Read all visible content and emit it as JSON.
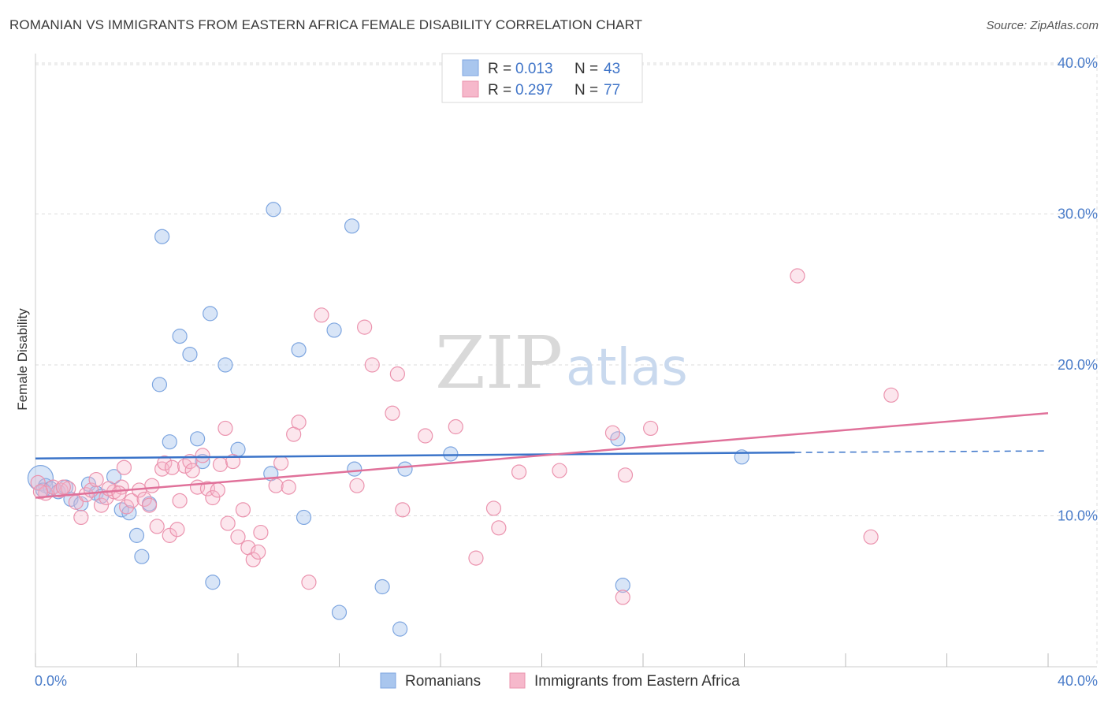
{
  "header": {
    "title": "ROMANIAN VS IMMIGRANTS FROM EASTERN AFRICA FEMALE DISABILITY CORRELATION CHART",
    "source": "Source: ZipAtlas.com"
  },
  "watermark": {
    "zip": "ZIP",
    "atlas": "atlas"
  },
  "legend": {
    "rows": [
      {
        "r_label": "R =",
        "r_value": "0.013",
        "n_label": "N =",
        "n_value": "43",
        "color": "#a9c6ee"
      },
      {
        "r_label": "R =",
        "r_value": "0.297",
        "n_label": "N =",
        "n_value": "77",
        "color": "#f6b8cb"
      }
    ]
  },
  "bottom_legend": {
    "items": [
      {
        "label": "Romanians",
        "color": "#a9c6ee"
      },
      {
        "label": "Immigrants from Eastern Africa",
        "color": "#f6b8cb"
      }
    ]
  },
  "chart_data": {
    "type": "scatter",
    "title": "ROMANIAN VS IMMIGRANTS FROM EASTERN AFRICA FEMALE DISABILITY CORRELATION CHART",
    "xlabel": "",
    "ylabel": "Female Disability",
    "xlim": [
      0,
      40
    ],
    "ylim": [
      0,
      40
    ],
    "x_tick_labels": [
      "0.0%",
      "40.0%"
    ],
    "y_tick_labels": [
      "10.0%",
      "20.0%",
      "30.0%",
      "40.0%"
    ],
    "y_ticks": [
      10,
      20,
      30,
      40
    ],
    "grid": true,
    "legend_position": "top-center",
    "colors": {
      "romanians": "#a9c6ee",
      "romanians_line": "#3b74c9",
      "eastern_africa": "#f6b8cb",
      "eastern_africa_line": "#e0719a"
    },
    "series": [
      {
        "name": "Romanians",
        "r": 0.013,
        "n": 43,
        "trend": {
          "x0": 0,
          "y0": 13.8,
          "x1": 30,
          "y1": 14.2,
          "dashed_to_x": 40,
          "dashed_to_y": 14.3
        },
        "points": [
          [
            0.2,
            12.5
          ],
          [
            0.4,
            12.0
          ],
          [
            0.6,
            11.8
          ],
          [
            0.9,
            11.6
          ],
          [
            1.2,
            11.9
          ],
          [
            1.4,
            11.1
          ],
          [
            1.8,
            10.8
          ],
          [
            2.1,
            12.1
          ],
          [
            2.4,
            11.5
          ],
          [
            2.6,
            11.3
          ],
          [
            3.1,
            12.6
          ],
          [
            3.4,
            10.4
          ],
          [
            3.7,
            10.2
          ],
          [
            4.0,
            8.7
          ],
          [
            4.2,
            7.3
          ],
          [
            4.5,
            10.8
          ],
          [
            4.9,
            18.7
          ],
          [
            5.0,
            28.5
          ],
          [
            5.3,
            14.9
          ],
          [
            5.7,
            21.9
          ],
          [
            6.1,
            20.7
          ],
          [
            6.4,
            15.1
          ],
          [
            6.6,
            13.6
          ],
          [
            6.9,
            23.4
          ],
          [
            7.0,
            5.6
          ],
          [
            7.5,
            20.0
          ],
          [
            8.0,
            14.4
          ],
          [
            9.3,
            12.8
          ],
          [
            9.4,
            30.3
          ],
          [
            10.4,
            21.0
          ],
          [
            10.6,
            9.9
          ],
          [
            11.8,
            22.3
          ],
          [
            12.0,
            3.6
          ],
          [
            12.5,
            29.2
          ],
          [
            12.6,
            13.1
          ],
          [
            13.7,
            5.3
          ],
          [
            14.4,
            2.5
          ],
          [
            14.6,
            13.1
          ],
          [
            16.4,
            14.1
          ],
          [
            23.0,
            15.1
          ],
          [
            23.2,
            5.4
          ],
          [
            27.9,
            13.9
          ],
          [
            0.3,
            11.7
          ]
        ]
      },
      {
        "name": "Immigrants from Eastern Africa",
        "r": 0.297,
        "n": 77,
        "trend": {
          "x0": 0,
          "y0": 11.2,
          "x1": 40,
          "y1": 16.8
        },
        "points": [
          [
            0.1,
            12.2
          ],
          [
            0.4,
            11.5
          ],
          [
            0.7,
            11.9
          ],
          [
            1.0,
            11.7
          ],
          [
            1.3,
            11.8
          ],
          [
            1.6,
            10.9
          ],
          [
            1.8,
            9.9
          ],
          [
            2.0,
            11.4
          ],
          [
            2.2,
            11.7
          ],
          [
            2.4,
            12.4
          ],
          [
            2.6,
            10.7
          ],
          [
            2.8,
            11.2
          ],
          [
            3.1,
            11.6
          ],
          [
            3.4,
            11.9
          ],
          [
            3.5,
            13.2
          ],
          [
            3.6,
            10.6
          ],
          [
            3.8,
            11.0
          ],
          [
            4.1,
            11.7
          ],
          [
            4.3,
            11.1
          ],
          [
            4.5,
            10.7
          ],
          [
            4.6,
            12.0
          ],
          [
            4.8,
            9.3
          ],
          [
            5.0,
            13.1
          ],
          [
            5.1,
            13.5
          ],
          [
            5.3,
            8.7
          ],
          [
            5.4,
            13.2
          ],
          [
            5.6,
            9.1
          ],
          [
            5.7,
            11.0
          ],
          [
            5.9,
            13.3
          ],
          [
            6.1,
            13.6
          ],
          [
            6.4,
            11.9
          ],
          [
            6.6,
            14.0
          ],
          [
            6.8,
            11.8
          ],
          [
            7.0,
            11.2
          ],
          [
            7.2,
            11.7
          ],
          [
            7.3,
            13.4
          ],
          [
            7.5,
            15.8
          ],
          [
            7.6,
            9.5
          ],
          [
            7.8,
            13.6
          ],
          [
            8.0,
            8.6
          ],
          [
            8.2,
            10.4
          ],
          [
            8.4,
            7.9
          ],
          [
            8.6,
            7.1
          ],
          [
            8.8,
            7.6
          ],
          [
            8.9,
            8.9
          ],
          [
            9.5,
            12.0
          ],
          [
            9.7,
            13.5
          ],
          [
            10.0,
            11.9
          ],
          [
            10.2,
            15.4
          ],
          [
            10.4,
            16.2
          ],
          [
            10.8,
            5.6
          ],
          [
            11.3,
            23.3
          ],
          [
            12.7,
            12.0
          ],
          [
            13.0,
            22.5
          ],
          [
            13.3,
            20.0
          ],
          [
            14.1,
            16.8
          ],
          [
            14.3,
            19.4
          ],
          [
            14.5,
            10.4
          ],
          [
            15.4,
            15.3
          ],
          [
            16.6,
            15.9
          ],
          [
            17.4,
            7.2
          ],
          [
            18.1,
            10.5
          ],
          [
            18.3,
            9.2
          ],
          [
            19.1,
            12.9
          ],
          [
            20.7,
            13.0
          ],
          [
            22.8,
            15.5
          ],
          [
            23.2,
            4.6
          ],
          [
            23.3,
            12.7
          ],
          [
            24.3,
            15.8
          ],
          [
            30.1,
            25.9
          ],
          [
            33.0,
            8.6
          ],
          [
            33.8,
            18.0
          ],
          [
            0.2,
            11.6
          ],
          [
            1.1,
            11.9
          ],
          [
            2.9,
            11.8
          ],
          [
            3.3,
            11.5
          ],
          [
            6.2,
            13.0
          ]
        ]
      }
    ]
  }
}
